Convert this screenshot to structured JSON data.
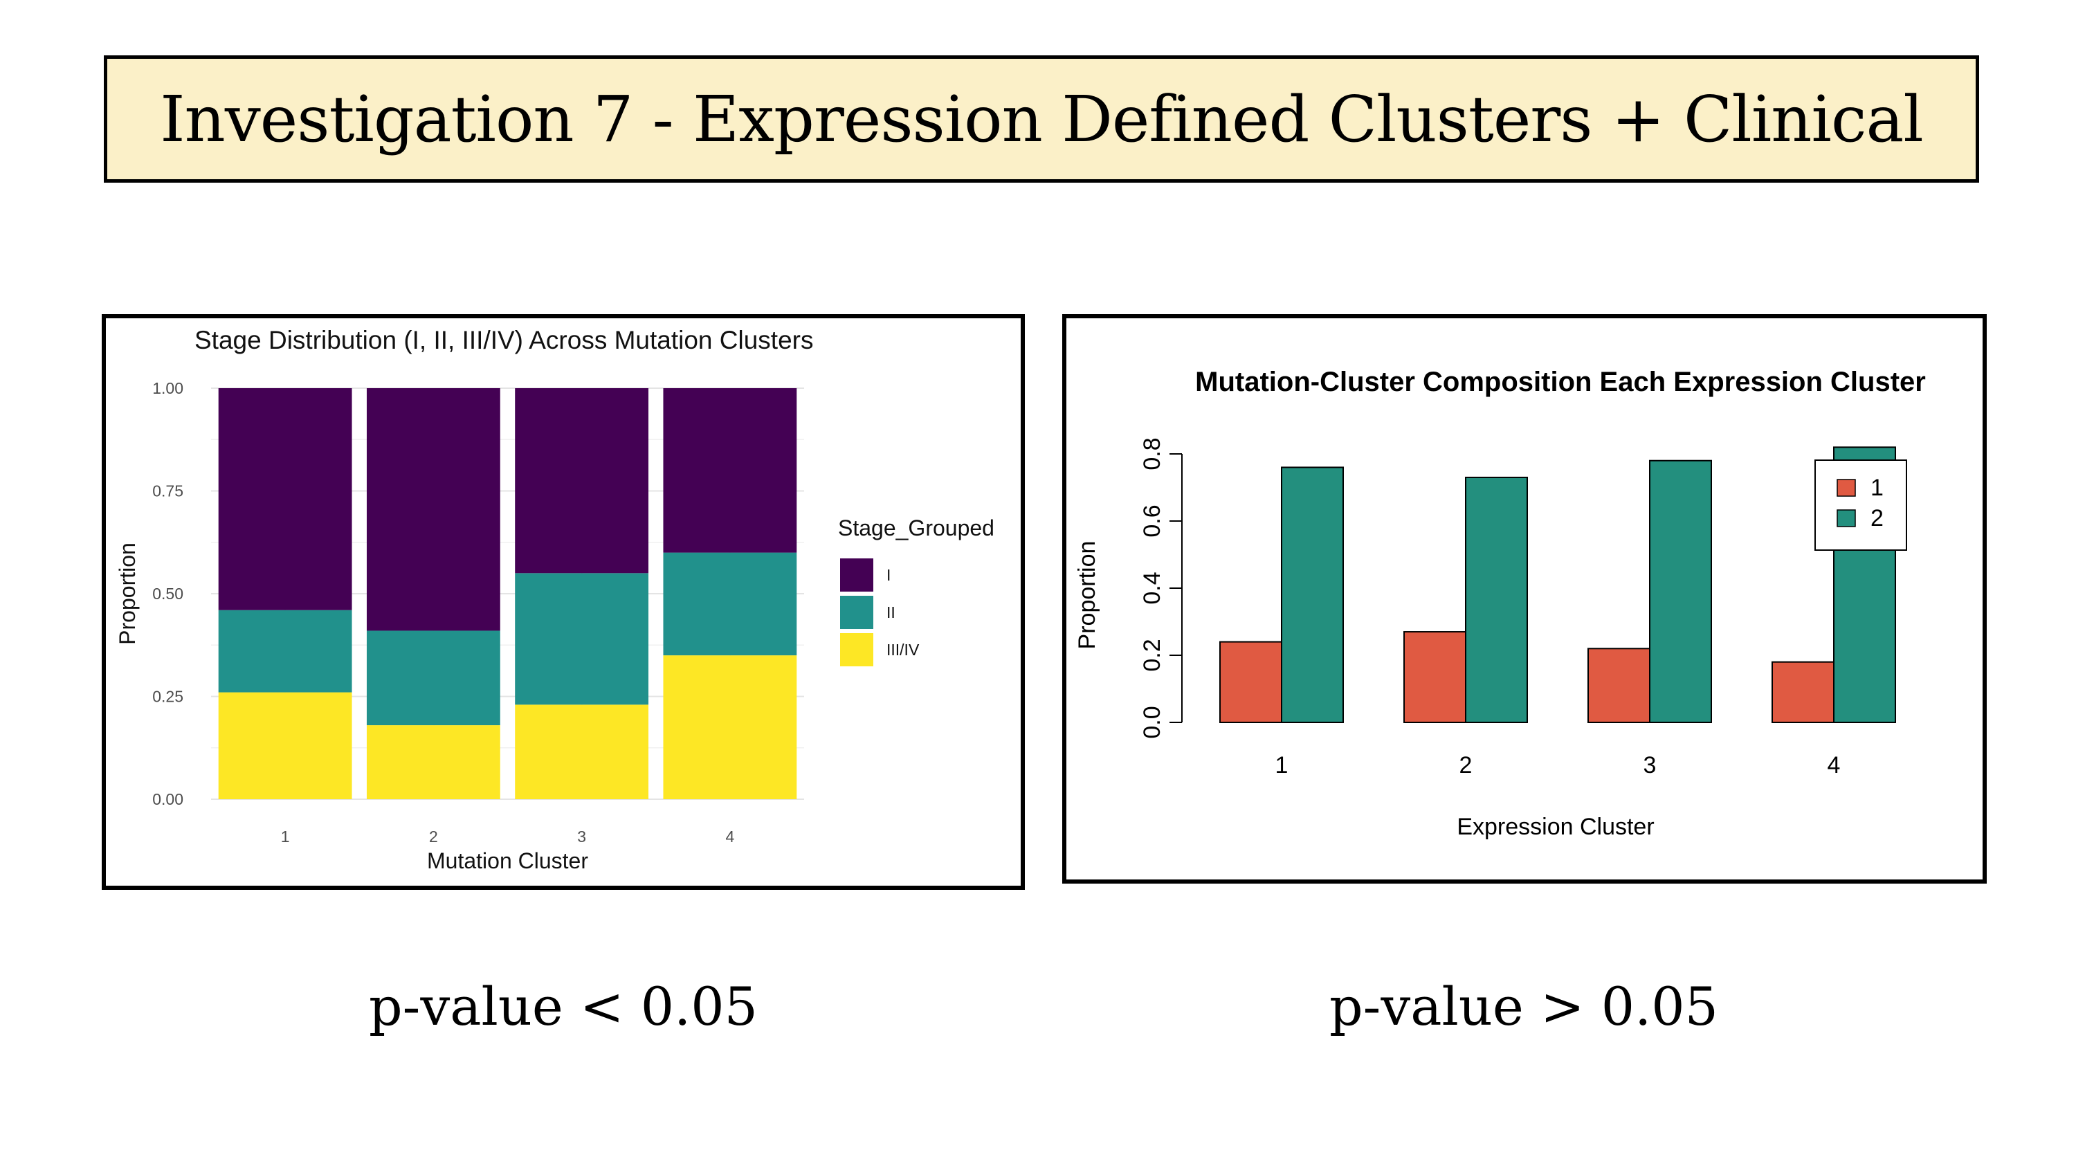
{
  "page_title": "Investigation 7 - Expression Defined Clusters + Clinical",
  "left_caption": "p-value < 0.05",
  "right_caption": "p-value > 0.05",
  "chart_data": [
    {
      "type": "bar",
      "stacked": true,
      "title": "Stage Distribution (I, II, III/IV) Across Mutation Clusters",
      "xlabel": "Mutation Cluster",
      "ylabel": "Proportion",
      "categories": [
        "1",
        "2",
        "3",
        "4"
      ],
      "ylim": [
        0,
        1
      ],
      "yticks": [
        "0.00",
        "0.25",
        "0.50",
        "0.75",
        "1.00"
      ],
      "legend_title": "Stage_Grouped",
      "legend_position": "right",
      "grid": true,
      "series": [
        {
          "name": "III/IV",
          "color": "#fde725",
          "values": [
            0.26,
            0.18,
            0.23,
            0.35
          ]
        },
        {
          "name": "II",
          "color": "#21918c",
          "values": [
            0.2,
            0.23,
            0.32,
            0.25
          ]
        },
        {
          "name": "I",
          "color": "#440154",
          "values": [
            0.54,
            0.59,
            0.45,
            0.4
          ]
        }
      ],
      "legend_order": [
        "I",
        "II",
        "III/IV"
      ]
    },
    {
      "type": "bar",
      "grouped": true,
      "title": "Mutation-Cluster Composition Each Expression Cluster",
      "xlabel": "Expression Cluster",
      "ylabel": "Proportion",
      "categories": [
        "1",
        "2",
        "3",
        "4"
      ],
      "ylim": [
        0,
        0.8
      ],
      "yticks": [
        "0.0",
        "0.2",
        "0.4",
        "0.6",
        "0.8"
      ],
      "legend_position": "top-right",
      "grid": false,
      "series": [
        {
          "name": "1",
          "color": "#e05a42",
          "values": [
            0.24,
            0.27,
            0.22,
            0.18
          ]
        },
        {
          "name": "2",
          "color": "#238f7e",
          "values": [
            0.76,
            0.73,
            0.78,
            0.82
          ]
        }
      ]
    }
  ]
}
